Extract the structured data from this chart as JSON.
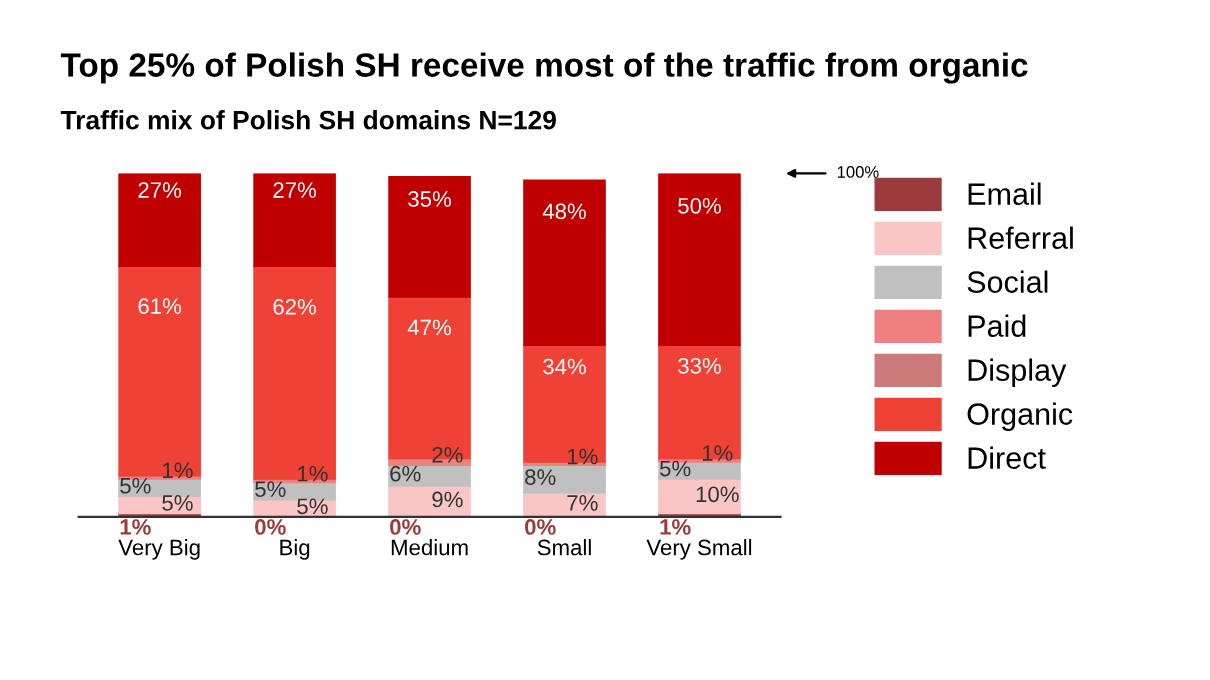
{
  "chart_data": {
    "type": "bar",
    "stacked": true,
    "title": "Top 25% of Polish SH receive most of the traffic from organic",
    "subtitle": "Traffic mix of Polish SH domains N=129",
    "categories": [
      "Very Big",
      "Big",
      "Medium",
      "Small",
      "Very Small"
    ],
    "series": [
      {
        "name": "Email",
        "color": "#9b3b3b",
        "values": [
          1,
          0,
          0,
          0,
          1
        ],
        "value_labels": [
          "1%",
          "0%",
          "0%",
          "0%",
          "1%"
        ]
      },
      {
        "name": "Referral",
        "color": "#f9c5c5",
        "values": [
          5,
          5,
          9,
          7,
          10
        ],
        "value_labels": [
          "5%",
          "5%",
          "9%",
          "7%",
          "10%"
        ]
      },
      {
        "name": "Social",
        "color": "#c0c0c0",
        "values": [
          5,
          5,
          6,
          8,
          5
        ],
        "value_labels": [
          "5%",
          "5%",
          "6%",
          "8%",
          "5%"
        ]
      },
      {
        "name": "Paid",
        "color": "#f08080",
        "values": [
          1,
          1,
          2,
          1,
          1
        ],
        "value_labels": [
          "1%",
          "1%",
          "2%",
          "1%",
          "1%"
        ]
      },
      {
        "name": "Display",
        "color": "#cd7a7a",
        "values": [
          0,
          0,
          0,
          0,
          0
        ],
        "value_labels": [
          null,
          null,
          null,
          null,
          null
        ]
      },
      {
        "name": "Organic",
        "color": "#ef4136",
        "values": [
          61,
          62,
          47,
          34,
          33
        ],
        "value_labels": [
          "61%",
          "62%",
          "47%",
          "34%",
          "33%"
        ]
      },
      {
        "name": "Direct",
        "color": "#c00000",
        "values": [
          27,
          27,
          35,
          48,
          50
        ],
        "value_labels": [
          "27%",
          "27%",
          "35%",
          "48%",
          "50%"
        ]
      }
    ],
    "ylim": [
      0,
      100
    ],
    "tick_labels": "x",
    "legend": "right",
    "grid": false,
    "annotations": [
      "100%"
    ]
  }
}
